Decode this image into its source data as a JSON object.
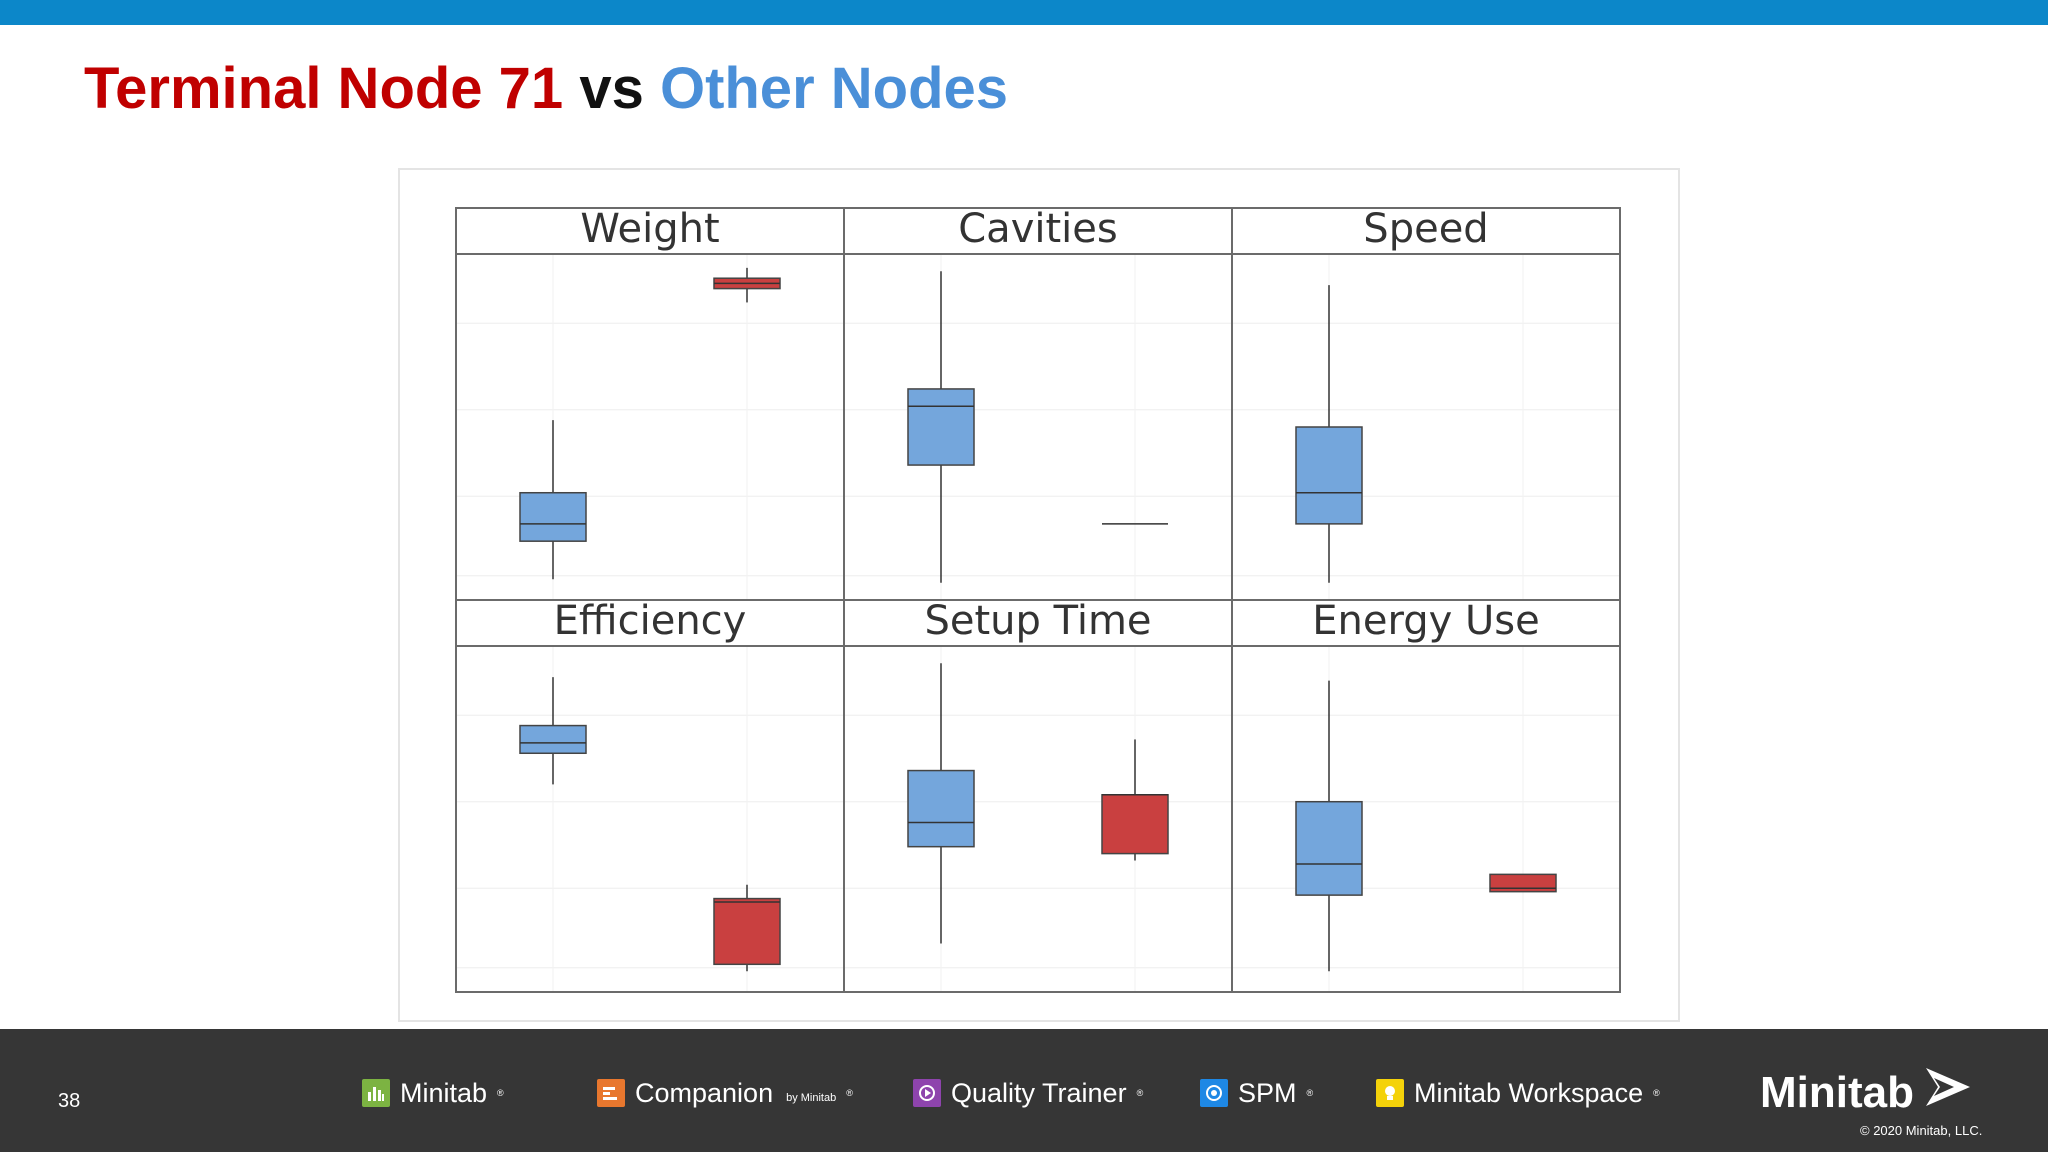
{
  "slide": {
    "title_part1": "Terminal Node 71",
    "title_part2": "vs",
    "title_part3": "Other Nodes",
    "page_number": "38",
    "copyright": "© 2020 Minitab, LLC.",
    "colors": {
      "top_bar": "#0c87c9",
      "title_red": "#c00000",
      "title_blue": "#4a8fd8",
      "footer_bg": "#363636",
      "box_blue": "#74a6dc",
      "box_red": "#c94040"
    }
  },
  "footer": {
    "products": [
      {
        "label": "Minitab",
        "icon": "minitab-bar-chart-icon",
        "icon_color": "#7cb342"
      },
      {
        "label": "Companion",
        "sub": "by Minitab",
        "icon": "companion-icon",
        "icon_color": "#e8772e"
      },
      {
        "label": "Quality Trainer",
        "icon": "quality-trainer-play-icon",
        "icon_color": "#8e44ad"
      },
      {
        "label": "SPM",
        "icon": "spm-icon",
        "icon_color": "#1e88e5"
      },
      {
        "label": "Minitab Workspace",
        "icon": "workspace-bulb-icon",
        "icon_color": "#f4d20a"
      }
    ],
    "logo_text": "Minitab",
    "logo_icon": "minitab-arrow-logo-icon"
  },
  "chart_data": [
    {
      "type": "boxplot",
      "title": "Weight",
      "ylim": [
        0,
        100
      ],
      "groups": [
        {
          "color": "#74a6dc",
          "whisker_low": 6,
          "q1": 17,
          "median": 22,
          "q3": 31,
          "whisker_high": 52
        },
        {
          "color": "#c94040",
          "whisker_low": 86,
          "q1": 90,
          "median": 91.5,
          "q3": 93,
          "whisker_high": 96
        }
      ]
    },
    {
      "type": "boxplot",
      "title": "Cavities",
      "ylim": [
        0,
        100
      ],
      "groups": [
        {
          "color": "#74a6dc",
          "whisker_low": 5,
          "q1": 39,
          "median": 56,
          "q3": 61,
          "whisker_high": 95
        },
        {
          "color": "#c94040",
          "whisker_low": 22,
          "q1": 22,
          "median": 22,
          "q3": 22,
          "whisker_high": 22
        }
      ]
    },
    {
      "type": "boxplot",
      "title": "Speed",
      "ylim": [
        0,
        100
      ],
      "groups": [
        {
          "color": "#74a6dc",
          "whisker_low": 5,
          "q1": 22,
          "median": 31,
          "q3": 50,
          "whisker_high": 91
        }
      ]
    },
    {
      "type": "boxplot",
      "title": "Efficiency",
      "ylim": [
        0,
        100
      ],
      "groups": [
        {
          "color": "#74a6dc",
          "whisker_low": 60,
          "q1": 69,
          "median": 72,
          "q3": 77,
          "whisker_high": 91
        },
        {
          "color": "#c94040",
          "whisker_low": 6,
          "q1": 8,
          "median": 26,
          "q3": 27,
          "whisker_high": 31
        }
      ]
    },
    {
      "type": "boxplot",
      "title": "Setup Time",
      "ylim": [
        0,
        100
      ],
      "groups": [
        {
          "color": "#74a6dc",
          "whisker_low": 14,
          "q1": 42,
          "median": 49,
          "q3": 64,
          "whisker_high": 95
        },
        {
          "color": "#c94040",
          "whisker_low": 38,
          "q1": 40,
          "median": 57,
          "q3": 57,
          "whisker_high": 73
        }
      ]
    },
    {
      "type": "boxplot",
      "title": "Energy Use",
      "ylim": [
        0,
        100
      ],
      "groups": [
        {
          "color": "#74a6dc",
          "whisker_low": 6,
          "q1": 28,
          "median": 37,
          "q3": 55,
          "whisker_high": 90
        },
        {
          "color": "#c94040",
          "whisker_low": 29,
          "q1": 29,
          "median": 30,
          "q3": 34,
          "whisker_high": 34
        }
      ]
    }
  ]
}
